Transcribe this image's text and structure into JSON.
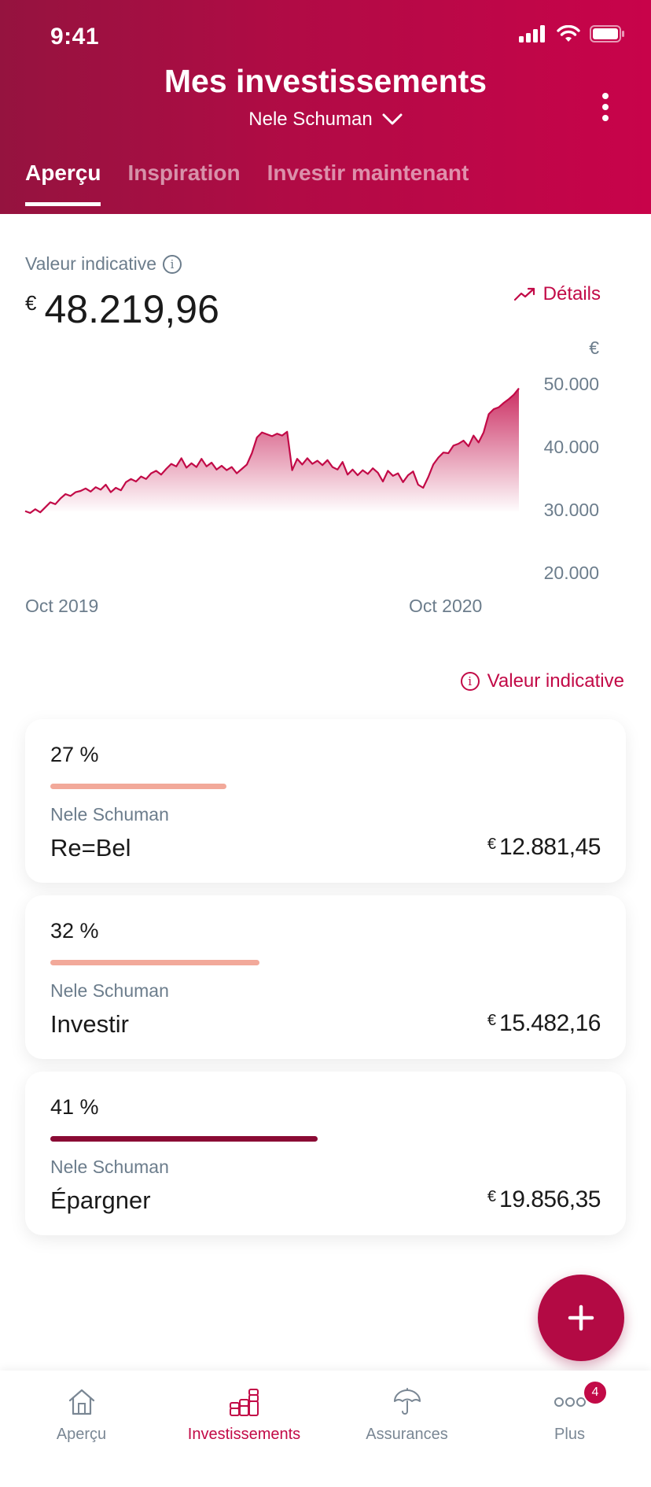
{
  "status": {
    "time": "9:41"
  },
  "header": {
    "title": "Mes investissements",
    "subtitle": "Nele Schuman",
    "tabs": [
      {
        "label": "Aperçu",
        "active": true
      },
      {
        "label": "Inspiration",
        "active": false
      },
      {
        "label": "Investir maintenant",
        "active": false
      }
    ]
  },
  "summary": {
    "label": "Valeur indicative",
    "currency": "€",
    "value": "48.219,96",
    "details_label": "Détails"
  },
  "chart_data": {
    "type": "area",
    "currency_label": "€",
    "yticks": [
      "50.000",
      "40.000",
      "30.000",
      "20.000"
    ],
    "ylim": [
      20000,
      50000
    ],
    "xticks": [
      "Oct 2019",
      "Oct 2020"
    ],
    "x_start": "Oct 2019",
    "x_end": "Mar 2021",
    "values": [
      29800,
      29500,
      30100,
      29600,
      30400,
      31200,
      30900,
      31800,
      32500,
      32200,
      32800,
      33000,
      33400,
      32900,
      33600,
      33200,
      34000,
      32800,
      33500,
      33100,
      34400,
      34900,
      34500,
      35300,
      34900,
      35800,
      36200,
      35600,
      36500,
      37300,
      36900,
      38200,
      36700,
      37400,
      36800,
      38100,
      36900,
      37500,
      36400,
      37000,
      36300,
      36800,
      35800,
      36500,
      37200,
      39000,
      41500,
      42300,
      42000,
      41700,
      42100,
      41800,
      42400,
      36300,
      38100,
      37200,
      38200,
      37300,
      37800,
      37100,
      37900,
      36800,
      36400,
      37600,
      35600,
      36400,
      35500,
      36300,
      35700,
      36600,
      35900,
      34500,
      36200,
      35400,
      35800,
      34400,
      35500,
      36100,
      34000,
      33500,
      35200,
      37200,
      38300,
      39100,
      39000,
      40200,
      40500,
      41000,
      40100,
      41800,
      40700,
      42300,
      45200,
      46000,
      46300,
      47000,
      47600,
      48300,
      49300
    ]
  },
  "section_info": "Valeur indicative",
  "cards": [
    {
      "percent": "27 %",
      "share": 0.27,
      "owner": "Nele Schuman",
      "name": "Re=Bel",
      "currency": "€",
      "amount": "12.881,45",
      "bar_color": "#f2a99a"
    },
    {
      "percent": "32 %",
      "share": 0.32,
      "owner": "Nele Schuman",
      "name": "Investir",
      "currency": "€",
      "amount": "15.482,16",
      "bar_color": "#f2a99a"
    },
    {
      "percent": "41 %",
      "share": 0.41,
      "owner": "Nele Schuman",
      "name": "Épargner",
      "currency": "€",
      "amount": "19.856,35",
      "bar_color": "#8a0a34"
    }
  ],
  "bottom_nav": {
    "items": [
      {
        "label": "Aperçu",
        "icon": "home-icon"
      },
      {
        "label": "Investissements",
        "icon": "coins-icon"
      },
      {
        "label": "Assurances",
        "icon": "umbrella-icon"
      },
      {
        "label": "Plus",
        "icon": "more-icon",
        "badge": "4"
      }
    ]
  },
  "colors": {
    "brand": "#c20a47",
    "header_dark": "#95133f",
    "muted": "#6c7d8c"
  }
}
